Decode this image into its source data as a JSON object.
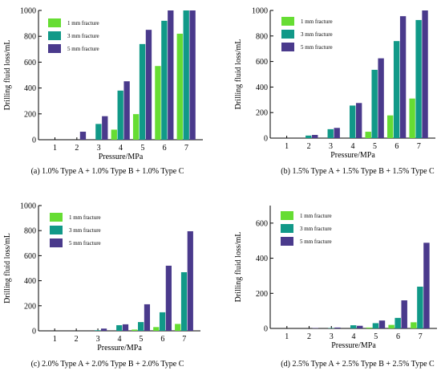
{
  "colors": {
    "series": [
      "#66dd33",
      "#119988",
      "#4a3a8c"
    ],
    "axis": "#000000"
  },
  "chart_data": [
    {
      "type": "bar",
      "caption": "(a) 1.0% Type A + 1.0% Type B + 1.0% Type C",
      "xlabel": "Pressure/MPa",
      "ylabel": "Drilling  fluid  loss/mL",
      "categories": [
        "1",
        "2",
        "3",
        "4",
        "5",
        "6",
        "7"
      ],
      "ylim": [
        0,
        1000
      ],
      "yticks": [
        0,
        200,
        400,
        600,
        800,
        1000
      ],
      "legend": "top-left",
      "series": [
        {
          "name": "1 mm fracture",
          "values": [
            0,
            0,
            0,
            78,
            198,
            570,
            820
          ]
        },
        {
          "name": "3 mm fracture",
          "values": [
            0,
            0,
            122,
            380,
            740,
            920,
            1000
          ]
        },
        {
          "name": "5 mm fracture",
          "values": [
            0,
            62,
            182,
            452,
            850,
            1000,
            1000
          ]
        }
      ]
    },
    {
      "type": "bar",
      "caption": "(b) 1.5% Type A + 1.5% Type B + 1.5% Type C",
      "xlabel": "Pressure/MPa",
      "ylabel": "Drilling  fluid  loss/mL",
      "categories": [
        "1",
        "2",
        "3",
        "4",
        "5",
        "6",
        "7"
      ],
      "ylim": [
        0,
        1000
      ],
      "yticks": [
        0,
        200,
        400,
        600,
        800,
        1000
      ],
      "legend": "top-left",
      "series": [
        {
          "name": "1 mm fracture",
          "values": [
            0,
            0,
            0,
            0,
            50,
            178,
            310
          ]
        },
        {
          "name": "3 mm fracture",
          "values": [
            0,
            20,
            70,
            255,
            535,
            760,
            925
          ]
        },
        {
          "name": "5 mm fracture",
          "values": [
            0,
            25,
            80,
            275,
            625,
            955,
            1000
          ]
        }
      ]
    },
    {
      "type": "bar",
      "caption": "(c) 2.0% Type A + 2.0% Type B + 2.0% Type C",
      "xlabel": "Pressure/MPa",
      "ylabel": "Drilling  fluid  loss/mL",
      "categories": [
        "1",
        "2",
        "3",
        "4",
        "5",
        "6",
        "7"
      ],
      "ylim": [
        0,
        1000
      ],
      "yticks": [
        0,
        200,
        400,
        600,
        800,
        1000
      ],
      "legend": "top-left",
      "series": [
        {
          "name": "1 mm fracture",
          "values": [
            0,
            0,
            0,
            0,
            10,
            30,
            55
          ]
        },
        {
          "name": "3 mm fracture",
          "values": [
            0,
            0,
            5,
            45,
            70,
            148,
            468
          ]
        },
        {
          "name": "5 mm fracture",
          "values": [
            0,
            0,
            18,
            52,
            212,
            520,
            795
          ]
        }
      ]
    },
    {
      "type": "bar",
      "caption": "(d) 2.5% Type A + 2.5% Type B + 2.5% Type C",
      "xlabel": "Pressure/MPa",
      "ylabel": "Drilling  fluid  loss/mL",
      "categories": [
        "1",
        "2",
        "3",
        "4",
        "5",
        "6",
        "7"
      ],
      "ylim": [
        0,
        700
      ],
      "yticks": [
        0,
        200,
        400,
        600
      ],
      "legend": "top-left",
      "series": [
        {
          "name": "1 mm fracture",
          "values": [
            0,
            0,
            0,
            0,
            5,
            20,
            35
          ]
        },
        {
          "name": "3 mm fracture",
          "values": [
            0,
            0,
            2,
            18,
            30,
            60,
            238
          ]
        },
        {
          "name": "5 mm fracture",
          "values": [
            0,
            2,
            5,
            15,
            45,
            160,
            488
          ]
        }
      ]
    }
  ]
}
